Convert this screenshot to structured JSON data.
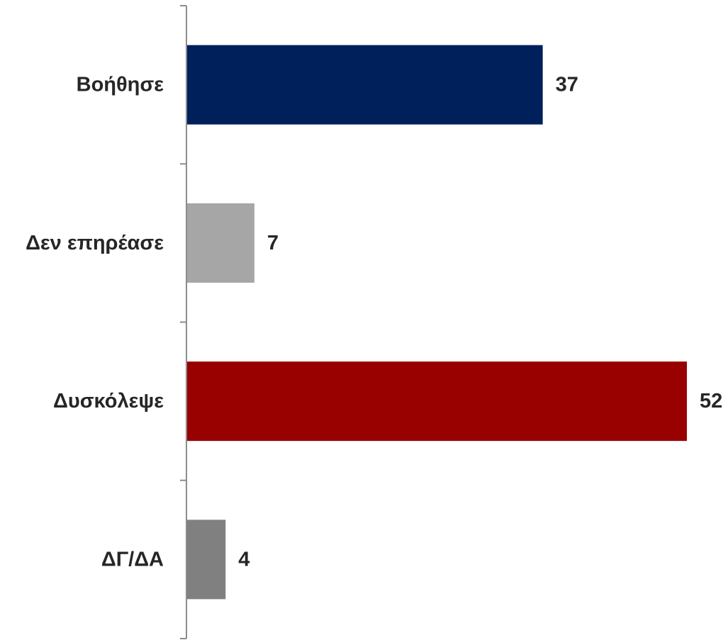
{
  "chart_data": {
    "type": "bar",
    "orientation": "horizontal",
    "categories": [
      "Βοήθησε",
      "Δεν επηρέασε",
      "Δυσκόλεψε",
      "ΔΓ/ΔΑ"
    ],
    "values": [
      37,
      7,
      52,
      4
    ],
    "value_labels": [
      "37",
      "7",
      "52",
      "4"
    ],
    "colors": [
      "#00205B",
      "#A6A6A6",
      "#990000",
      "#808080"
    ],
    "xlim": [
      0,
      52
    ],
    "grid": false,
    "legend": "none",
    "data_labels": "outside-end"
  }
}
